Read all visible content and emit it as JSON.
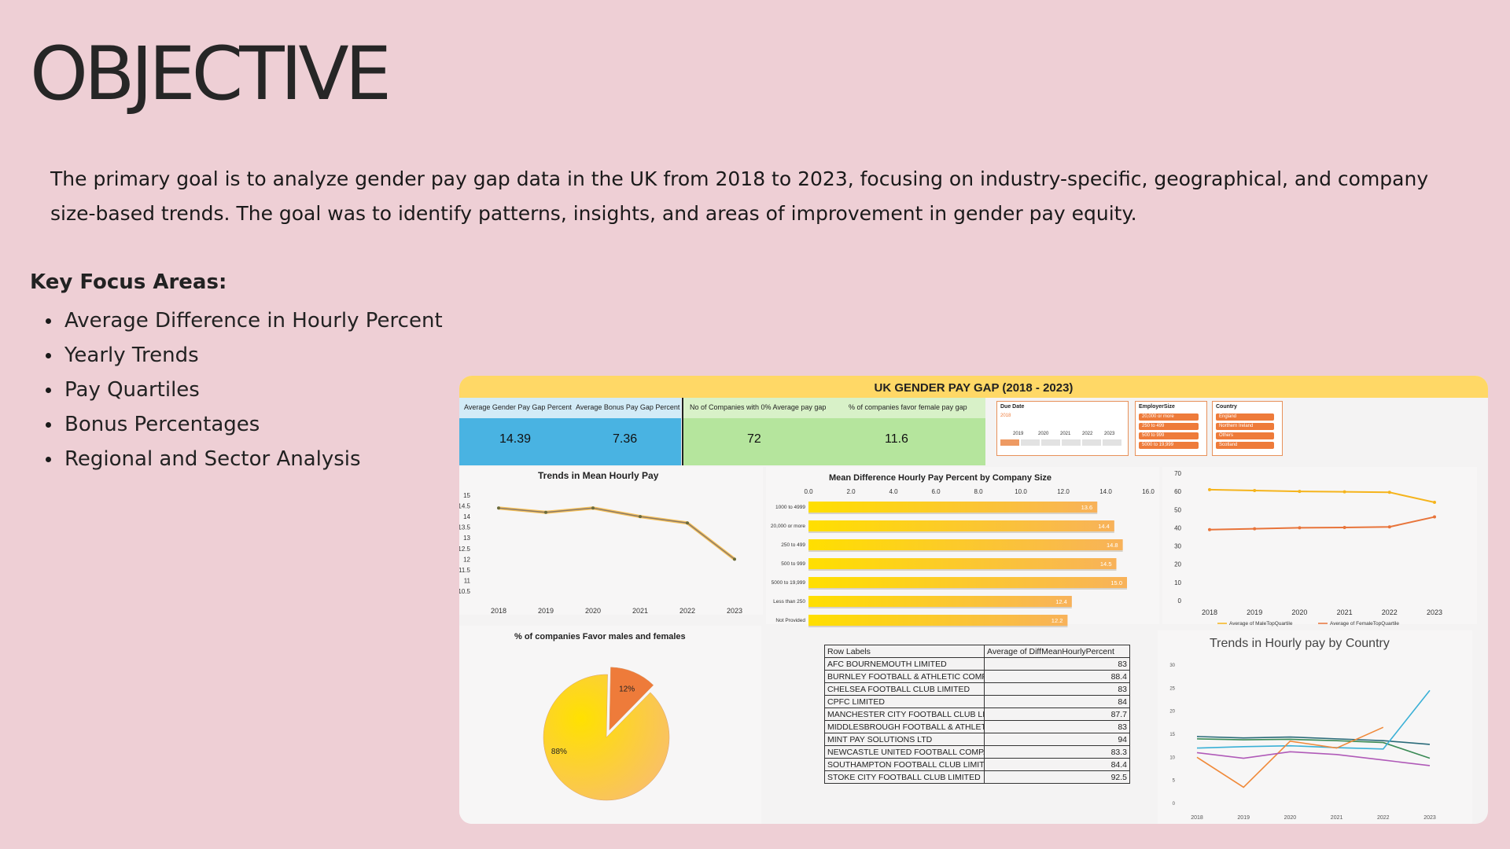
{
  "slide": {
    "title": "OBJECTIVE",
    "intro": "The primary goal is to analyze gender pay gap data in the UK from 2018 to 2023, focusing on industry-specific, geographical, and company size-based trends. The goal was to identify patterns, insights, and areas of improvement in gender pay equity.",
    "focus_heading": "Key Focus Areas:",
    "focus_items": [
      "Average Difference in Hourly Percent",
      "Yearly Trends",
      "Pay Quartiles",
      "Bonus Percentages",
      "Regional and Sector Analysis"
    ]
  },
  "dashboard": {
    "title": "UK GENDER PAY GAP (2018 - 2023)",
    "kpis": [
      {
        "label": "Average Gender Pay Gap Percent",
        "value": "14.39"
      },
      {
        "label": "Average  Bonus Pay Gap Percent",
        "value": "7.36"
      },
      {
        "label": "No of Companies with 0% Average pay gap",
        "value": "72"
      },
      {
        "label": "% of companies favor female pay gap",
        "value": "11.6"
      }
    ],
    "slicers": {
      "due_date": {
        "title": "Due Date",
        "selected": "2018",
        "years": [
          "2019",
          "2020",
          "2021",
          "2022",
          "2023"
        ]
      },
      "employer_size": {
        "title": "EmployerSize",
        "items": [
          "20,000 or more",
          "250 to 499",
          "500 to 999",
          "5000 to 19,999"
        ]
      },
      "country": {
        "title": "Country",
        "items": [
          "England",
          "Northern Ireland",
          "Others",
          "Scotland"
        ]
      }
    },
    "colors": {
      "accent": "#ffd866",
      "blue": "#49b3e2",
      "green": "#b5e59d",
      "orange": "#ee7b3a",
      "yellow": "#ffd900"
    },
    "table": {
      "headers": [
        "Row Labels",
        "Average of DiffMeanHourlyPercent"
      ],
      "rows": [
        [
          "AFC BOURNEMOUTH LIMITED",
          "83"
        ],
        [
          "BURNLEY FOOTBALL & ATHLETIC COMPANY",
          "88.4"
        ],
        [
          "CHELSEA FOOTBALL CLUB LIMITED",
          "83"
        ],
        [
          "CPFC LIMITED",
          "84"
        ],
        [
          "MANCHESTER CITY FOOTBALL CLUB LIMITED",
          "87.7"
        ],
        [
          "MIDDLESBROUGH FOOTBALL & ATHLETIC",
          "83"
        ],
        [
          "MINT PAY SOLUTIONS LTD",
          "94"
        ],
        [
          "NEWCASTLE UNITED FOOTBALL COMPANY",
          "83.3"
        ],
        [
          "SOUTHAMPTON FOOTBALL CLUB LIMITED",
          "84.4"
        ],
        [
          "STOKE CITY FOOTBALL CLUB LIMITED",
          "92.5"
        ]
      ]
    }
  },
  "chart_data": [
    {
      "type": "line",
      "title": "Trends in Mean Hourly Pay",
      "x": [
        "2018",
        "2019",
        "2020",
        "2021",
        "2022",
        "2023"
      ],
      "series": [
        {
          "values": [
            14.4,
            14.2,
            14.4,
            14.0,
            13.7,
            12.0
          ]
        }
      ],
      "ylim": [
        10.5,
        15
      ],
      "yticks": [
        "15",
        "14.5",
        "14",
        "13.5",
        "13",
        "12.5",
        "12",
        "11.5",
        "11",
        "10.5"
      ]
    },
    {
      "type": "bar",
      "title": "Mean Difference Hourly Pay Percent by Company Size",
      "categories": [
        "1000 to 4999",
        "20,000 or more",
        "250 to 499",
        "500 to 999",
        "5000 to 19,999",
        "Less than 250",
        "Not Provided"
      ],
      "values": [
        13.6,
        14.4,
        14.8,
        14.5,
        15.0,
        12.4,
        12.2
      ],
      "xlim": [
        0,
        16
      ],
      "xticks": [
        "0.0",
        "2.0",
        "4.0",
        "6.0",
        "8.0",
        "10.0",
        "12.0",
        "14.0",
        "16.0"
      ]
    },
    {
      "type": "line",
      "x": [
        "2018",
        "2019",
        "2020",
        "2021",
        "2022",
        "2023"
      ],
      "series": [
        {
          "name": "Average of MaleTopQuartile",
          "values": [
            61,
            60.5,
            60,
            59.8,
            59.5,
            54
          ]
        },
        {
          "name": "Average of FemaleTopQuartile",
          "values": [
            39,
            39.5,
            40,
            40.2,
            40.5,
            46
          ]
        }
      ],
      "ylim": [
        0,
        70
      ],
      "yticks": [
        "70",
        "60",
        "50",
        "40",
        "30",
        "20",
        "10",
        "0"
      ],
      "legend": "bottom"
    },
    {
      "type": "pie",
      "title": "% of companies Favor males and females",
      "slices": [
        {
          "label": "12%",
          "value": 12
        },
        {
          "label": "88%",
          "value": 88
        }
      ]
    },
    {
      "type": "line",
      "title": "Trends in Hourly pay by Country",
      "x": [
        "2018",
        "2019",
        "2020",
        "2021",
        "2022",
        "2023"
      ],
      "series": [
        {
          "values": [
            14.5,
            14.2,
            14.4,
            14.0,
            13.6,
            12.8
          ]
        },
        {
          "values": [
            14.0,
            13.8,
            13.9,
            13.6,
            13.2,
            9.8
          ]
        },
        {
          "values": [
            12.0,
            12.3,
            12.5,
            12.1,
            11.8,
            24.5
          ]
        },
        {
          "values": [
            10.0,
            3.5,
            13.5,
            12.0,
            16.5,
            null
          ]
        },
        {
          "values": [
            11.0,
            9.8,
            11.2,
            10.6,
            9.4,
            8.2
          ]
        }
      ],
      "ylim": [
        0,
        30
      ],
      "yticks": [
        "30",
        "25",
        "20",
        "15",
        "10",
        "5",
        "0"
      ]
    }
  ]
}
